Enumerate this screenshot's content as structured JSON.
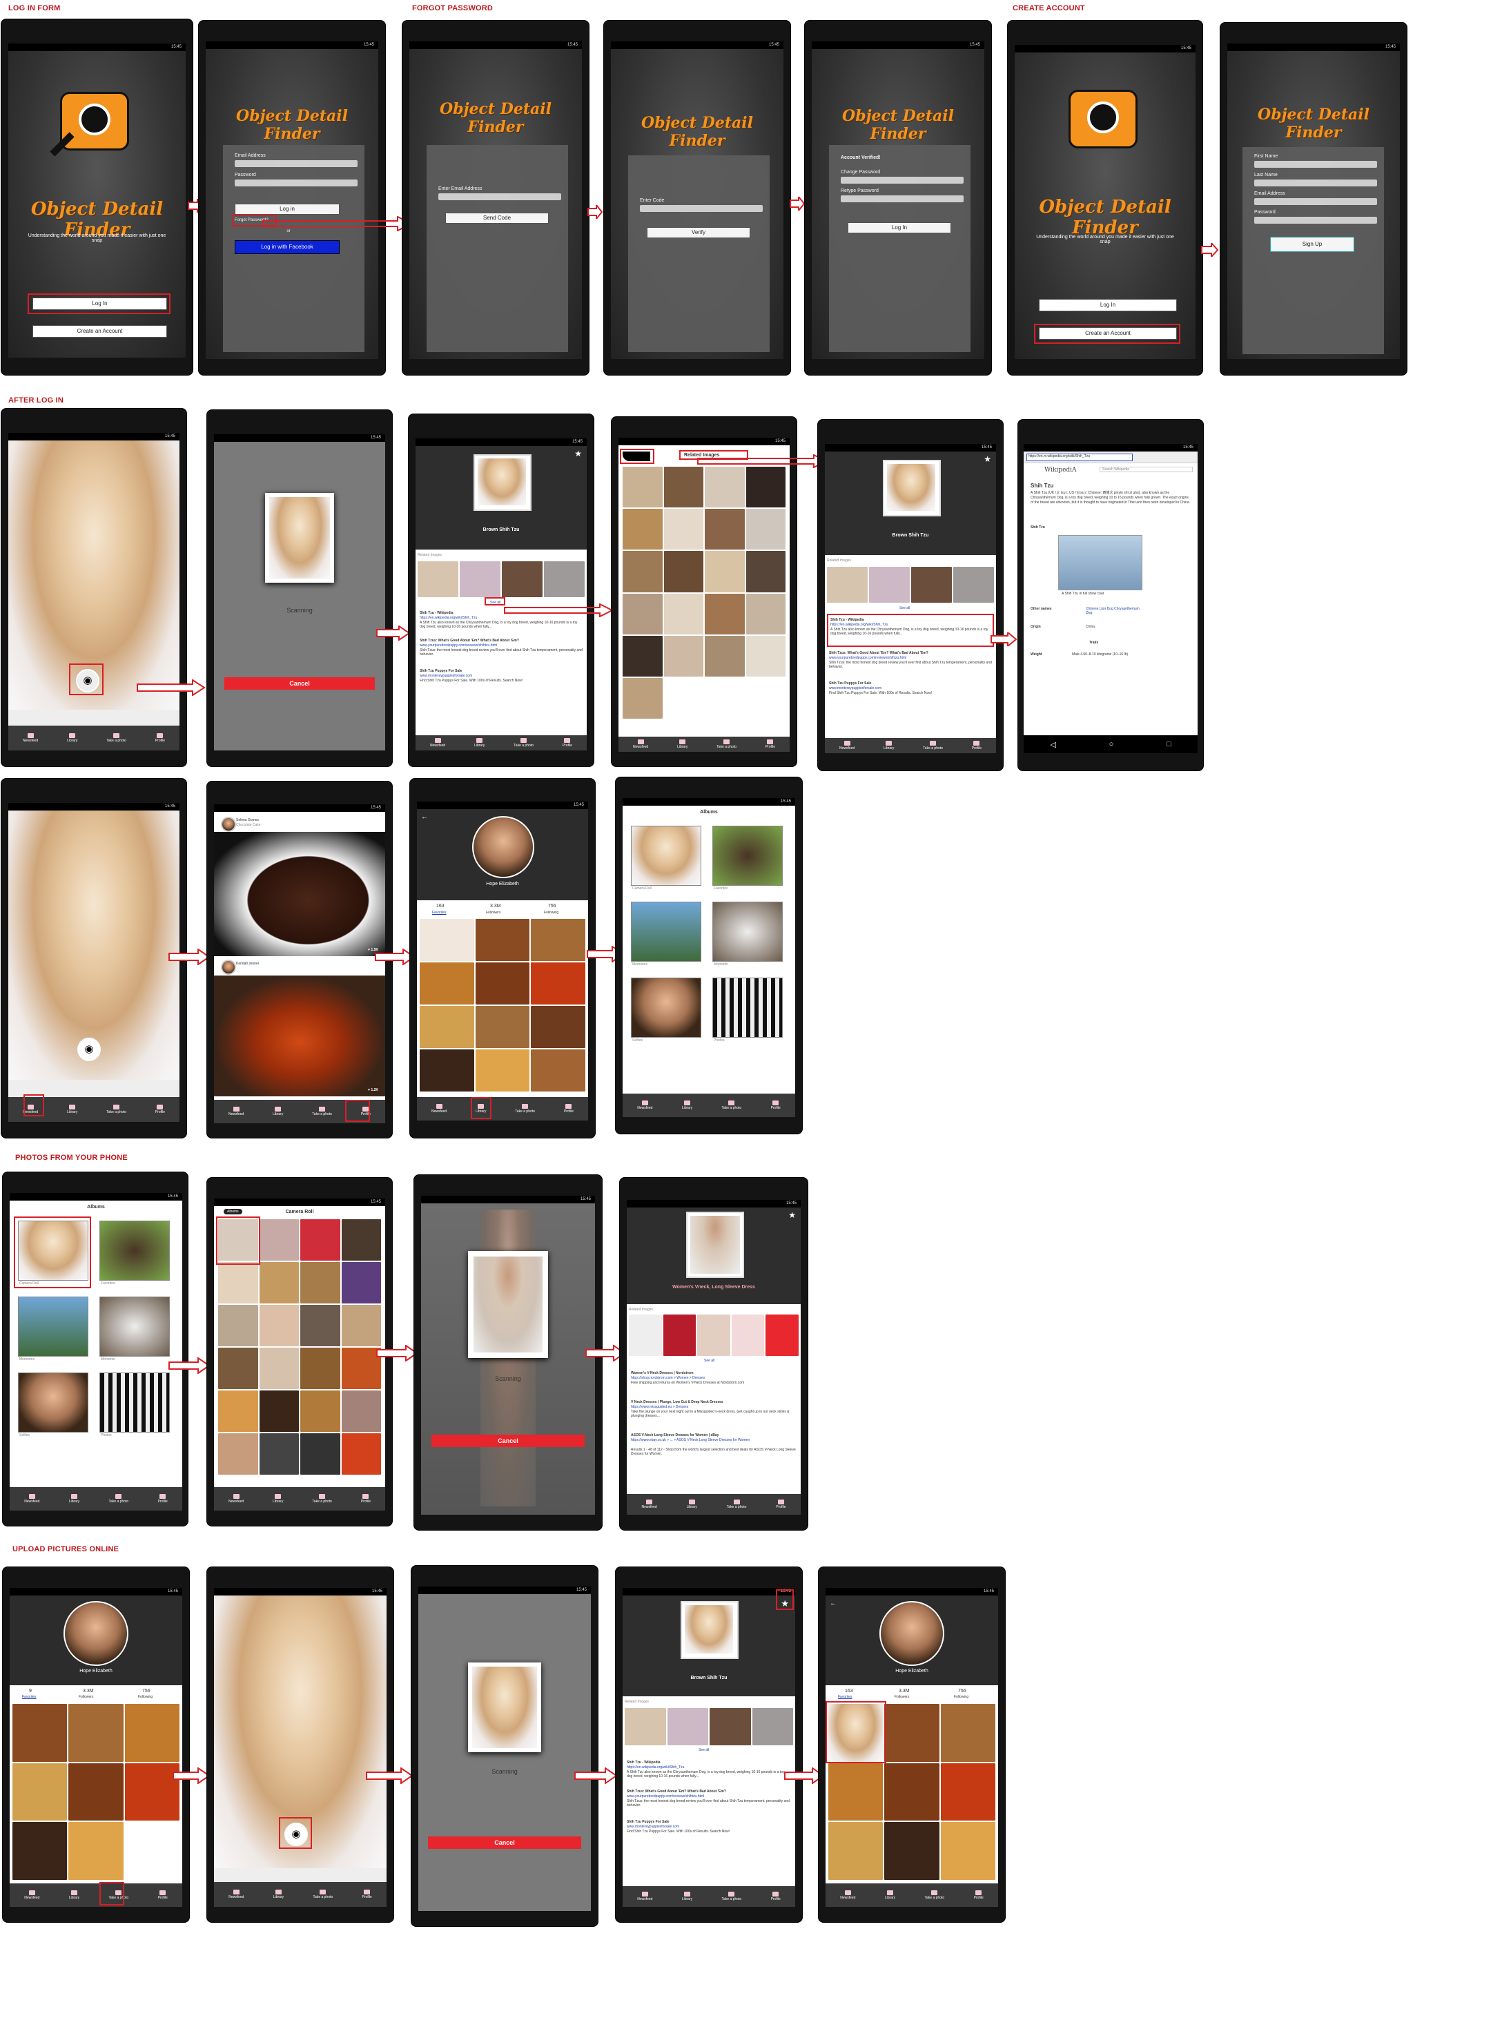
{
  "sections": {
    "login": "LOG IN FORM",
    "forgot": "FORGOT PASSWORD",
    "create": "CREATE ACCOUNT",
    "after": "AFTER LOG IN",
    "photos": "PHOTOS FROM YOUR PHONE",
    "upload": "UPLOAD PICTURES ONLINE"
  },
  "status_time": "15:45",
  "app": {
    "title": "Object Detail Finder",
    "tagline": "Understanding the world around you made it easier with just one snap"
  },
  "auth": {
    "email_label": "Email Address",
    "password_label": "Password",
    "login": "Log in",
    "login_cap": "Log In",
    "forgot": "Forgot Password?",
    "or": "or",
    "facebook": "Log in with Facebook",
    "create_account": "Create an Account",
    "enter_email": "Enter Email Address",
    "send_code": "Send Code",
    "enter_code": "Enter Code",
    "verify": "Verify",
    "verified": "Account Verified!",
    "change_password": "Change Password",
    "retype_password": "Retype Password",
    "first_name": "First Name",
    "last_name": "Last Name",
    "sign_up": "Sign Up"
  },
  "nav": [
    "Newsfeed",
    "Library",
    "Take a photo",
    "Profile"
  ],
  "scan": {
    "scanning": "Scanning",
    "cancel": "Cancel"
  },
  "result": {
    "dog_title": "Brown Shih Tzu",
    "dress_title": "Women's Vneck, Long Sleeve Dress",
    "related": "Related Images",
    "see_all": "See all",
    "r1_title": "Shih Tzu - Wikipedia",
    "r1_url": "https://en.wikipedia.org/wiki/Shih_Tzu",
    "r1_desc": "A Shih Tzu also known as the Chrysanthemum Dog, is a toy dog breed, weighing 10-16 pounds is a toy dog breed, weighing 10-16 pounds when fully...",
    "r2_title": "Shih Tzus: What's Good About 'Em? What's Bad About 'Em?",
    "r2_url": "www.yourpurebredpuppy.com/reviews/shihtzu.html",
    "r2_desc": "Shih Tzus: the most honest dog breed review you'll ever find about Shih Tzu temperament, personality and behavior.",
    "r3_title": "Shih Tzu Puppys For Sale",
    "r3_url": "www.montereypuppiesforsale.com",
    "r3_desc": "Find Shih Tzu Puppys For Sale. With 100s of Results. Search Now!",
    "d1_title": "Women's V-Neck Dresses | Nordstrom",
    "d1_url": "https://shop.nordstrom.com > Women > Dresses",
    "d1_desc": "Free shipping and returns on Women's V-Neck Dresses at Nordstrom.com",
    "d2_title": "V Neck Dresses | Plunge, Low Cut & Deep Neck Dresses",
    "d2_url": "https://www.missguided.eu > Dresses",
    "d2_desc": "Take the plunge on your next night out in a Missguided v-neck dress. Get caught up in our neck styles & plunging dresses...",
    "d3_title": "ASOS V-Neck Long Sleeve Dresses for Women | eBay",
    "d3_url": "https://www.ebay.co.uk > ... > ASOS V-Neck Long Sleeve Dresses for Women",
    "d3_desc": "Results 1 - 48 of 112 - Shop from the world's largest selection and best deals for ASOS V-Neck Long Sleeve Dresses for Women."
  },
  "wiki": {
    "url": "https://en.m.wikipedia.org/wiki/Shih_Tzu",
    "brand": "WikipediA",
    "search": "Search Wikipedia",
    "heading": "Shih Tzu",
    "body": "A Shih Tzu (UK /ˌʃiːˈtsuː/, US /ˈʃiːtsuː/; Chinese: 西施犬 pinyin shī zi gǒu), also known as the Chrysanthemum Dog, is a toy dog breed, weighing 10 to 16 pounds when fully grown. The exact origins of the breed are unknown, but it is thought to have originated in Tibet and then been developed in China.",
    "box_title": "Shih Tzu",
    "caption": "A Shih Tzu in full show coat",
    "other_names_k": "Other names",
    "other_names_v": "Chinese Lion Dog Chrysanthemum Dog",
    "origin_k": "Origin",
    "origin_v": "China",
    "traits": "Traits",
    "weight_k": "Weight",
    "weight_v": "Male  4.50–8.10 kilograms (10–16 lb)"
  },
  "profile": {
    "name": "Hope Elizabeth",
    "favorites_n": "163",
    "favorites": "Favorites",
    "followers_n": "3.3M",
    "followers": "Followers",
    "following_n": "756",
    "following": "Following",
    "favorites_n2": "9"
  },
  "feed": {
    "user1": "Selena Gomez",
    "user1_sub": "Chocolate Cake",
    "likes": "1.5K",
    "user2": "Kendall Jenner",
    "likes2": "1.2K"
  },
  "albums": {
    "title": "Albums",
    "camera_roll": "Camera Roll",
    "items": [
      {
        "name": "Camera Roll",
        "count": "1,713"
      },
      {
        "name": "Favorites",
        "count": "135"
      },
      {
        "name": "Memories",
        "count": "450"
      },
      {
        "name": "Moments",
        "count": "330"
      },
      {
        "name": "Selfies",
        "count": "208"
      },
      {
        "name": "Photos",
        "count": "894"
      }
    ]
  },
  "colors": {
    "accent_red": "#d81f26",
    "title_orange": "#f4931e",
    "facebook_blue": "#0a22e0",
    "nav_pink": "#f3c6cf"
  }
}
